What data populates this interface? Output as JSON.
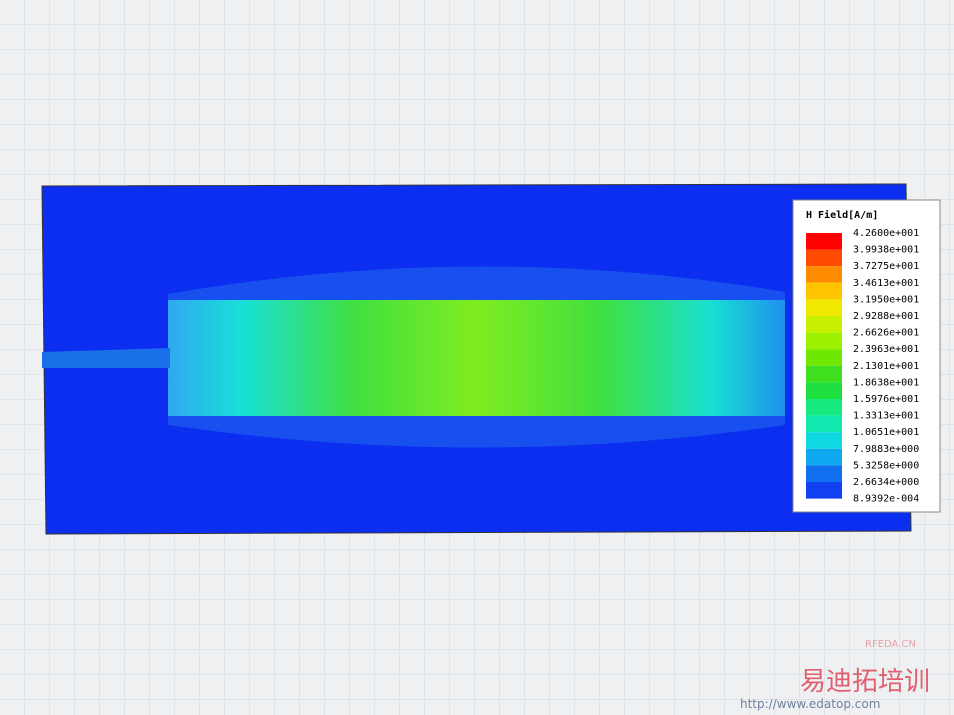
{
  "legend": {
    "title": "H Field[A/m]",
    "labels": [
      "4.2600e+001",
      "3.9938e+001",
      "3.7275e+001",
      "3.4613e+001",
      "3.1950e+001",
      "2.9288e+001",
      "2.6626e+001",
      "2.3963e+001",
      "2.1301e+001",
      "1.8638e+001",
      "1.5976e+001",
      "1.3313e+001",
      "1.0651e+001",
      "7.9883e+000",
      "5.3258e+000",
      "2.6634e+000",
      "8.9392e-004"
    ],
    "colors": [
      "#ff0000",
      "#ff4a00",
      "#ff8c00",
      "#ffc400",
      "#f0e800",
      "#c8f000",
      "#9cf000",
      "#6ee800",
      "#40e020",
      "#20e040",
      "#18e880",
      "#10e8b0",
      "#10d8e0",
      "#10a8f0",
      "#1070f0",
      "#1040f0"
    ]
  },
  "watermark": {
    "site": "RFEDA.CN",
    "brand": "易迪拓培训",
    "url": "http://www.edatop.com"
  }
}
